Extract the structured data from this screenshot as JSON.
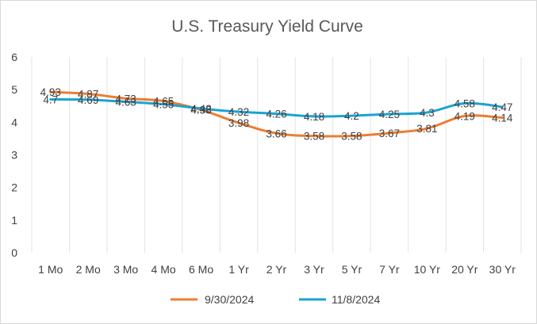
{
  "chart_data": {
    "type": "line",
    "title": "U.S. Treasury Yield Curve",
    "categories": [
      "1 Mo",
      "2 Mo",
      "3 Mo",
      "4 Mo",
      "6 Mo",
      "1 Yr",
      "2 Yr",
      "3 Yr",
      "5 Yr",
      "7 Yr",
      "10 Yr",
      "20 Yr",
      "30 Yr"
    ],
    "ylim": [
      0,
      6
    ],
    "yticks": [
      "0",
      "1",
      "2",
      "3",
      "4",
      "5",
      "6"
    ],
    "grid": "vertical",
    "legend_position": "bottom",
    "series": [
      {
        "name": "9/30/2024",
        "color": "#ED7D31",
        "values": [
          4.93,
          4.87,
          4.73,
          4.65,
          4.38,
          3.98,
          3.66,
          3.58,
          3.58,
          3.67,
          3.81,
          4.19,
          4.14
        ],
        "labels": [
          "4.93",
          "4.87",
          "4.73",
          "4.65",
          "4.38",
          "3.98",
          "3.66",
          "3.58",
          "3.58",
          "3.67",
          "3.81",
          "4.19",
          "4.14"
        ]
      },
      {
        "name": "11/8/2024",
        "color": "#1AA3D2",
        "values": [
          4.7,
          4.69,
          4.63,
          4.55,
          4.42,
          4.32,
          4.26,
          4.18,
          4.2,
          4.25,
          4.3,
          4.58,
          4.47
        ],
        "labels": [
          "4.7",
          "4.69",
          "4.63",
          "4.55",
          "4.42",
          "4.32",
          "4.26",
          "4.18",
          "4.2",
          "4.25",
          "4.3",
          "4.58",
          "4.47"
        ]
      }
    ]
  }
}
